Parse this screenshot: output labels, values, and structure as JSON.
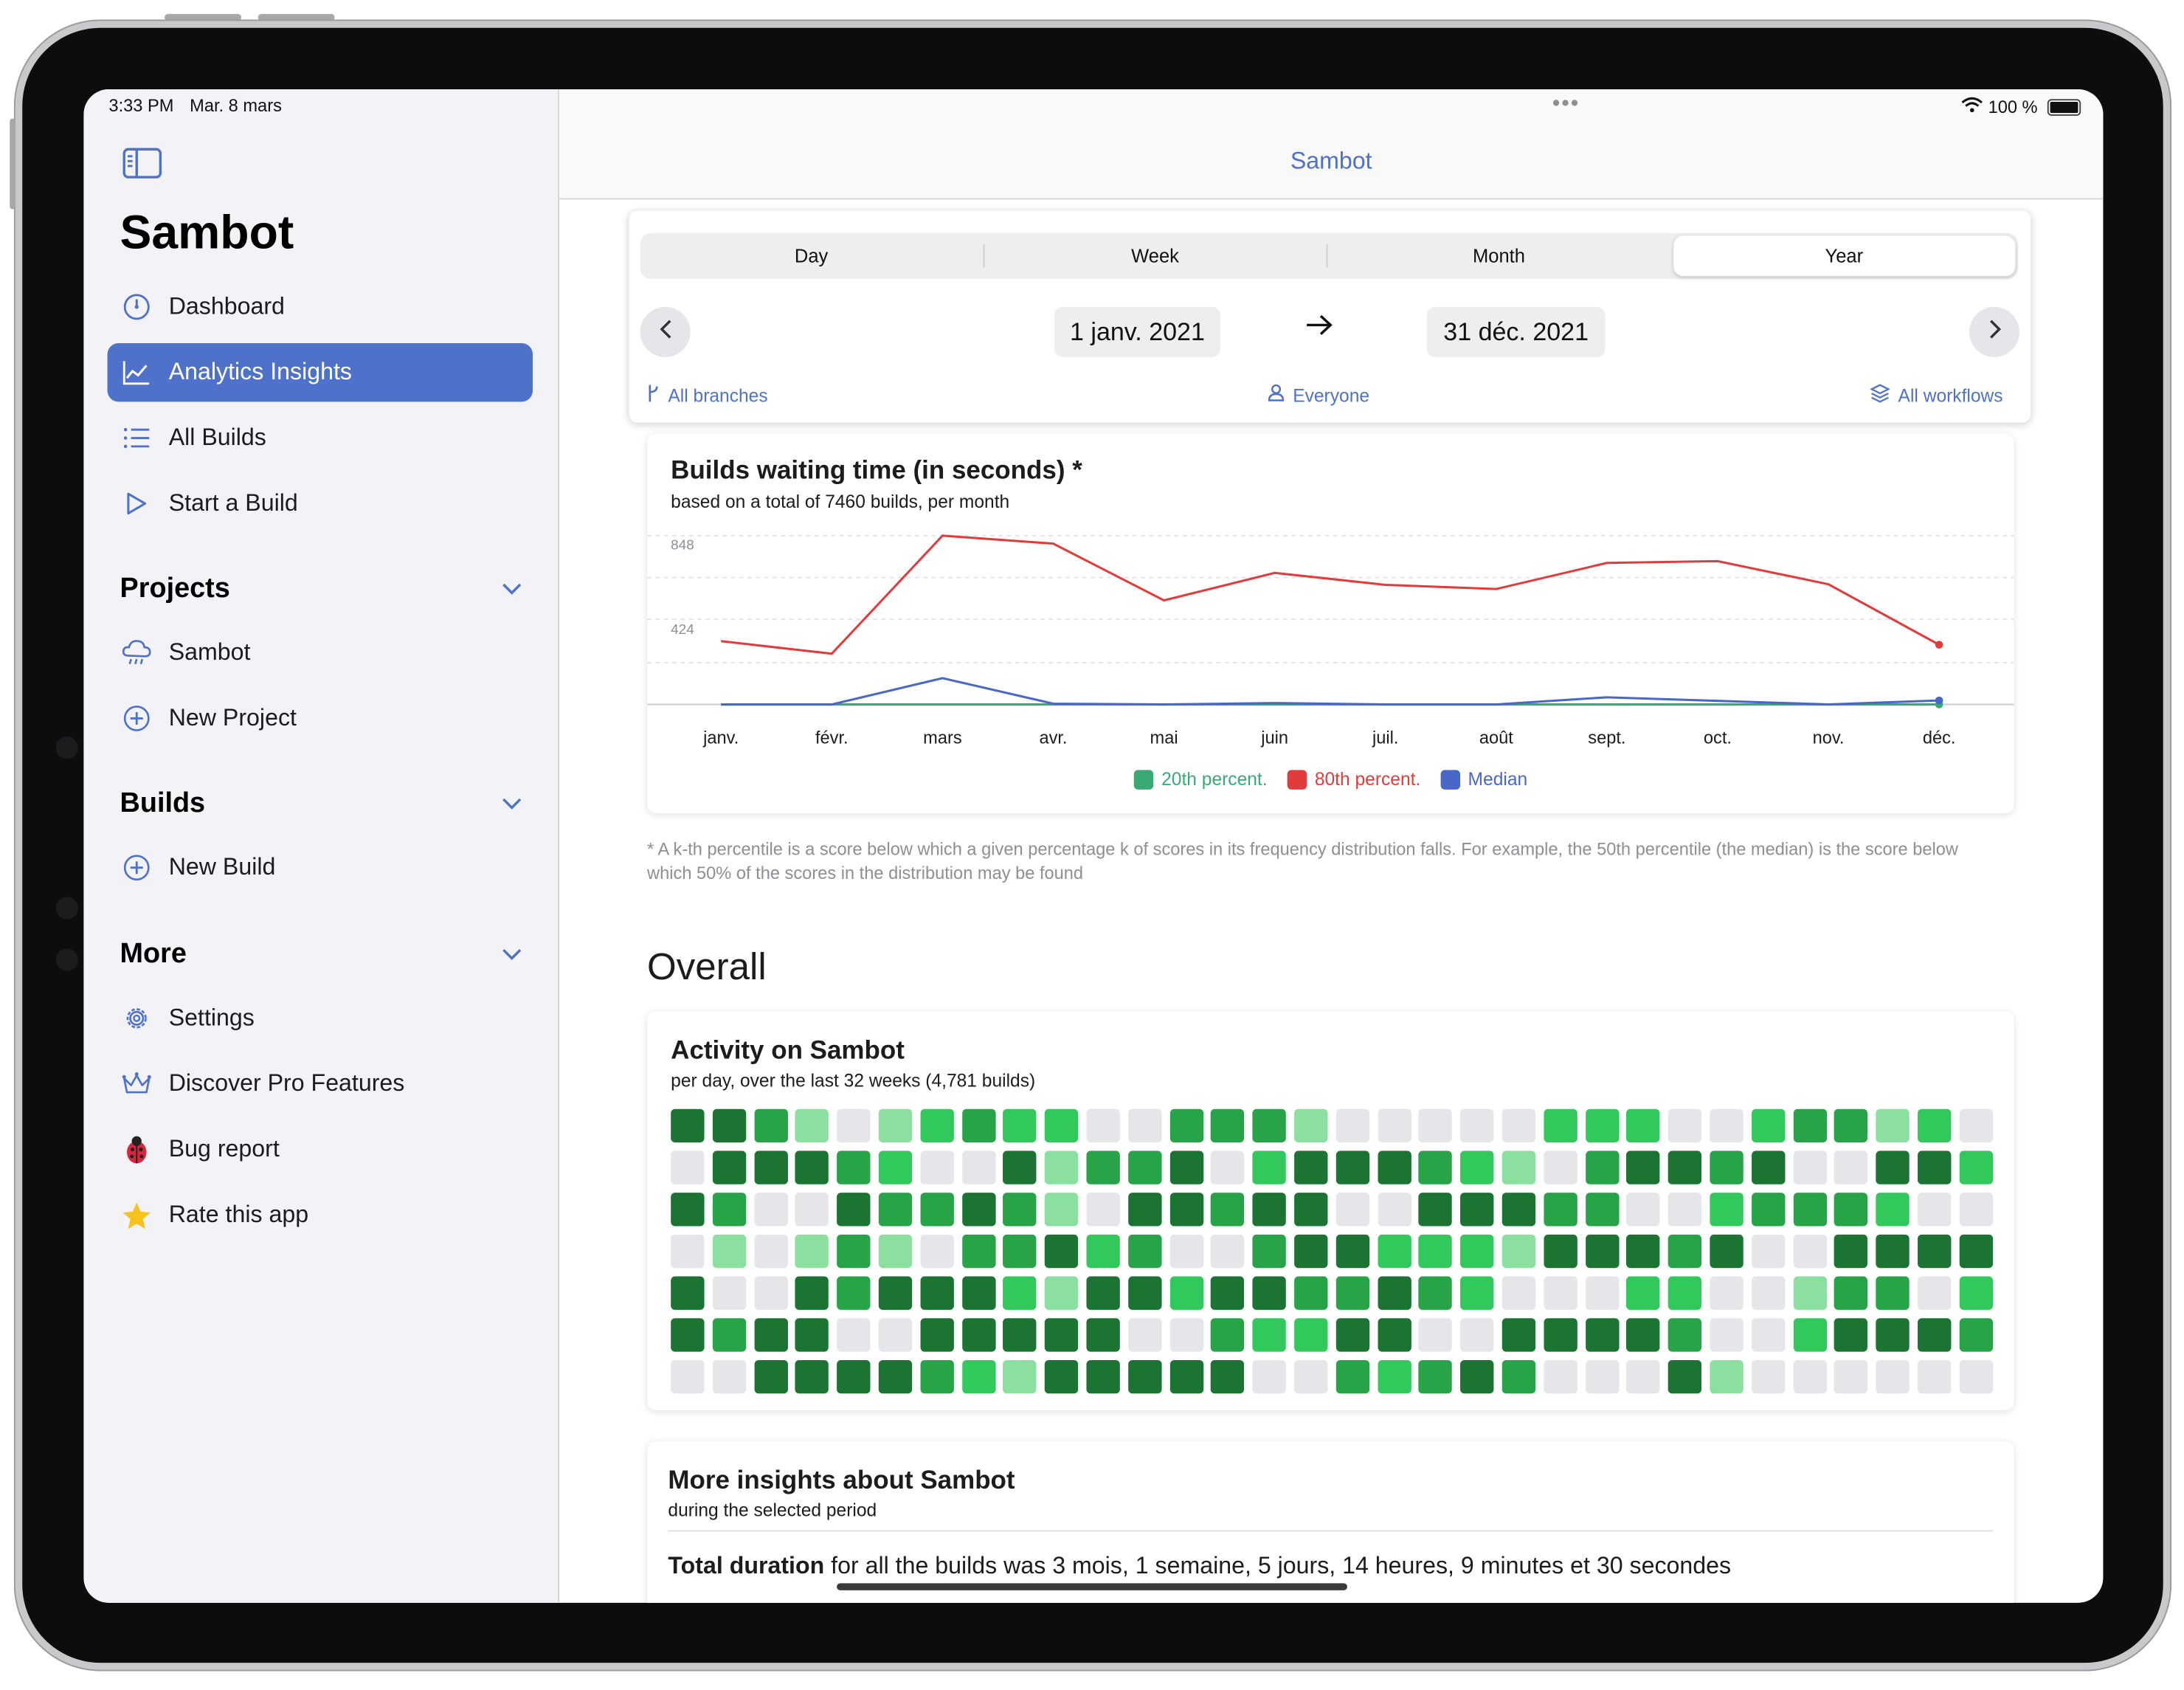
{
  "status": {
    "time": "3:33 PM",
    "date": "Mar. 8 mars",
    "battery": "100 %"
  },
  "sidebar": {
    "title": "Sambot",
    "nav": [
      {
        "label": "Dashboard",
        "icon": "gauge-icon"
      },
      {
        "label": "Analytics Insights",
        "icon": "chart-line-icon"
      },
      {
        "label": "All Builds",
        "icon": "list-icon"
      },
      {
        "label": "Start a Build",
        "icon": "play-icon"
      }
    ],
    "projects": {
      "title": "Projects",
      "items": [
        {
          "label": "Sambot",
          "icon": "cloud-rain-icon"
        },
        {
          "label": "New Project",
          "icon": "plus-circle-icon"
        }
      ]
    },
    "builds": {
      "title": "Builds",
      "items": [
        {
          "label": "New Build",
          "icon": "plus-circle-icon"
        }
      ]
    },
    "more": {
      "title": "More",
      "items": [
        {
          "label": "Settings",
          "icon": "gear-icon"
        },
        {
          "label": "Discover Pro Features",
          "icon": "crown-icon"
        },
        {
          "label": "Bug report",
          "icon": "ladybug-icon"
        },
        {
          "label": "Rate this app",
          "icon": "star-icon"
        }
      ]
    }
  },
  "navbar": {
    "title": "Sambot"
  },
  "period": {
    "segments": [
      "Day",
      "Week",
      "Month",
      "Year"
    ],
    "selected": "Year",
    "start": "1 janv. 2021",
    "end": "31 déc. 2021",
    "branches": "All branches",
    "people": "Everyone",
    "workflows": "All workflows"
  },
  "waiting_card": {
    "title": "Builds waiting time (in seconds) *",
    "subtitle": "based on a total of 7460 builds, per month",
    "footnote": "* A k-th percentile is a score below which a given percentage k of scores in its frequency distribution falls. For example, the 50th percentile (the median) is the score below which 50% of the scores in the distribution may be found"
  },
  "chart_data": {
    "type": "line",
    "categories": [
      "janv.",
      "févr.",
      "mars",
      "avr.",
      "mai",
      "juin",
      "juil.",
      "août",
      "sept.",
      "oct.",
      "nov.",
      "déc."
    ],
    "y_ticks": [
      "848",
      "424"
    ],
    "ylim": [
      0,
      848
    ],
    "grid": true,
    "legend_position": "bottom",
    "series": [
      {
        "name": "20th percent.",
        "color": "#3aaa75",
        "values": [
          0,
          0,
          0,
          0,
          0,
          0,
          0,
          0,
          0,
          0,
          0,
          0
        ]
      },
      {
        "name": "80th percent.",
        "color": "#e23b3b",
        "values": [
          318,
          255,
          848,
          808,
          523,
          661,
          601,
          580,
          711,
          720,
          604,
          300
        ]
      },
      {
        "name": "Median",
        "color": "#4868c8",
        "values": [
          0,
          0,
          132,
          4,
          0,
          7,
          0,
          0,
          36,
          18,
          0,
          20
        ]
      }
    ]
  },
  "overall": {
    "title": "Overall"
  },
  "activity": {
    "title": "Activity on Sambot",
    "subtitle": "per day, over the last 32 weeks (4,781 builds)",
    "colors": [
      "#e5e5ea",
      "#8be09f",
      "#32c95c",
      "#27a348",
      "#1c7433"
    ],
    "rows": [
      [
        4,
        4,
        3,
        1,
        0,
        1,
        2,
        3,
        2,
        2,
        0,
        0,
        3,
        3,
        3,
        1,
        0,
        0,
        0,
        0,
        0,
        2,
        2,
        2,
        0,
        0,
        2,
        3,
        3,
        1,
        2,
        0
      ],
      [
        0,
        4,
        4,
        4,
        3,
        2,
        0,
        0,
        4,
        1,
        3,
        3,
        4,
        0,
        2,
        4,
        4,
        4,
        3,
        2,
        1,
        0,
        3,
        4,
        4,
        3,
        4,
        0,
        0,
        4,
        4,
        2
      ],
      [
        4,
        3,
        0,
        0,
        4,
        3,
        3,
        4,
        3,
        1,
        0,
        4,
        4,
        3,
        4,
        4,
        0,
        0,
        4,
        4,
        4,
        3,
        3,
        0,
        0,
        2,
        3,
        3,
        3,
        2,
        0,
        0
      ],
      [
        0,
        1,
        0,
        1,
        3,
        1,
        0,
        3,
        3,
        4,
        2,
        3,
        0,
        0,
        3,
        4,
        4,
        2,
        2,
        2,
        1,
        4,
        4,
        4,
        3,
        4,
        0,
        0,
        4,
        4,
        4,
        4
      ],
      [
        4,
        0,
        0,
        4,
        3,
        4,
        4,
        4,
        2,
        1,
        4,
        4,
        2,
        4,
        4,
        3,
        3,
        4,
        3,
        2,
        0,
        0,
        0,
        2,
        2,
        0,
        0,
        1,
        3,
        3,
        0,
        2
      ],
      [
        4,
        3,
        4,
        4,
        0,
        0,
        4,
        4,
        4,
        4,
        4,
        0,
        0,
        3,
        2,
        2,
        4,
        4,
        0,
        0,
        4,
        4,
        4,
        4,
        3,
        0,
        0,
        2,
        4,
        4,
        4,
        3
      ],
      [
        0,
        0,
        4,
        4,
        4,
        4,
        3,
        2,
        1,
        4,
        4,
        4,
        4,
        4,
        0,
        0,
        3,
        2,
        3,
        4,
        3,
        0,
        0,
        0,
        4,
        1,
        0,
        0,
        0,
        0,
        0,
        0
      ]
    ]
  },
  "insights": {
    "title": "More insights about Sambot",
    "subtitle": "during the selected period",
    "line_label": "Total duration",
    "line_text": " for all the builds was 3 mois, 1 semaine, 5 jours, 14 heures, 9 minutes et 30 secondes"
  }
}
